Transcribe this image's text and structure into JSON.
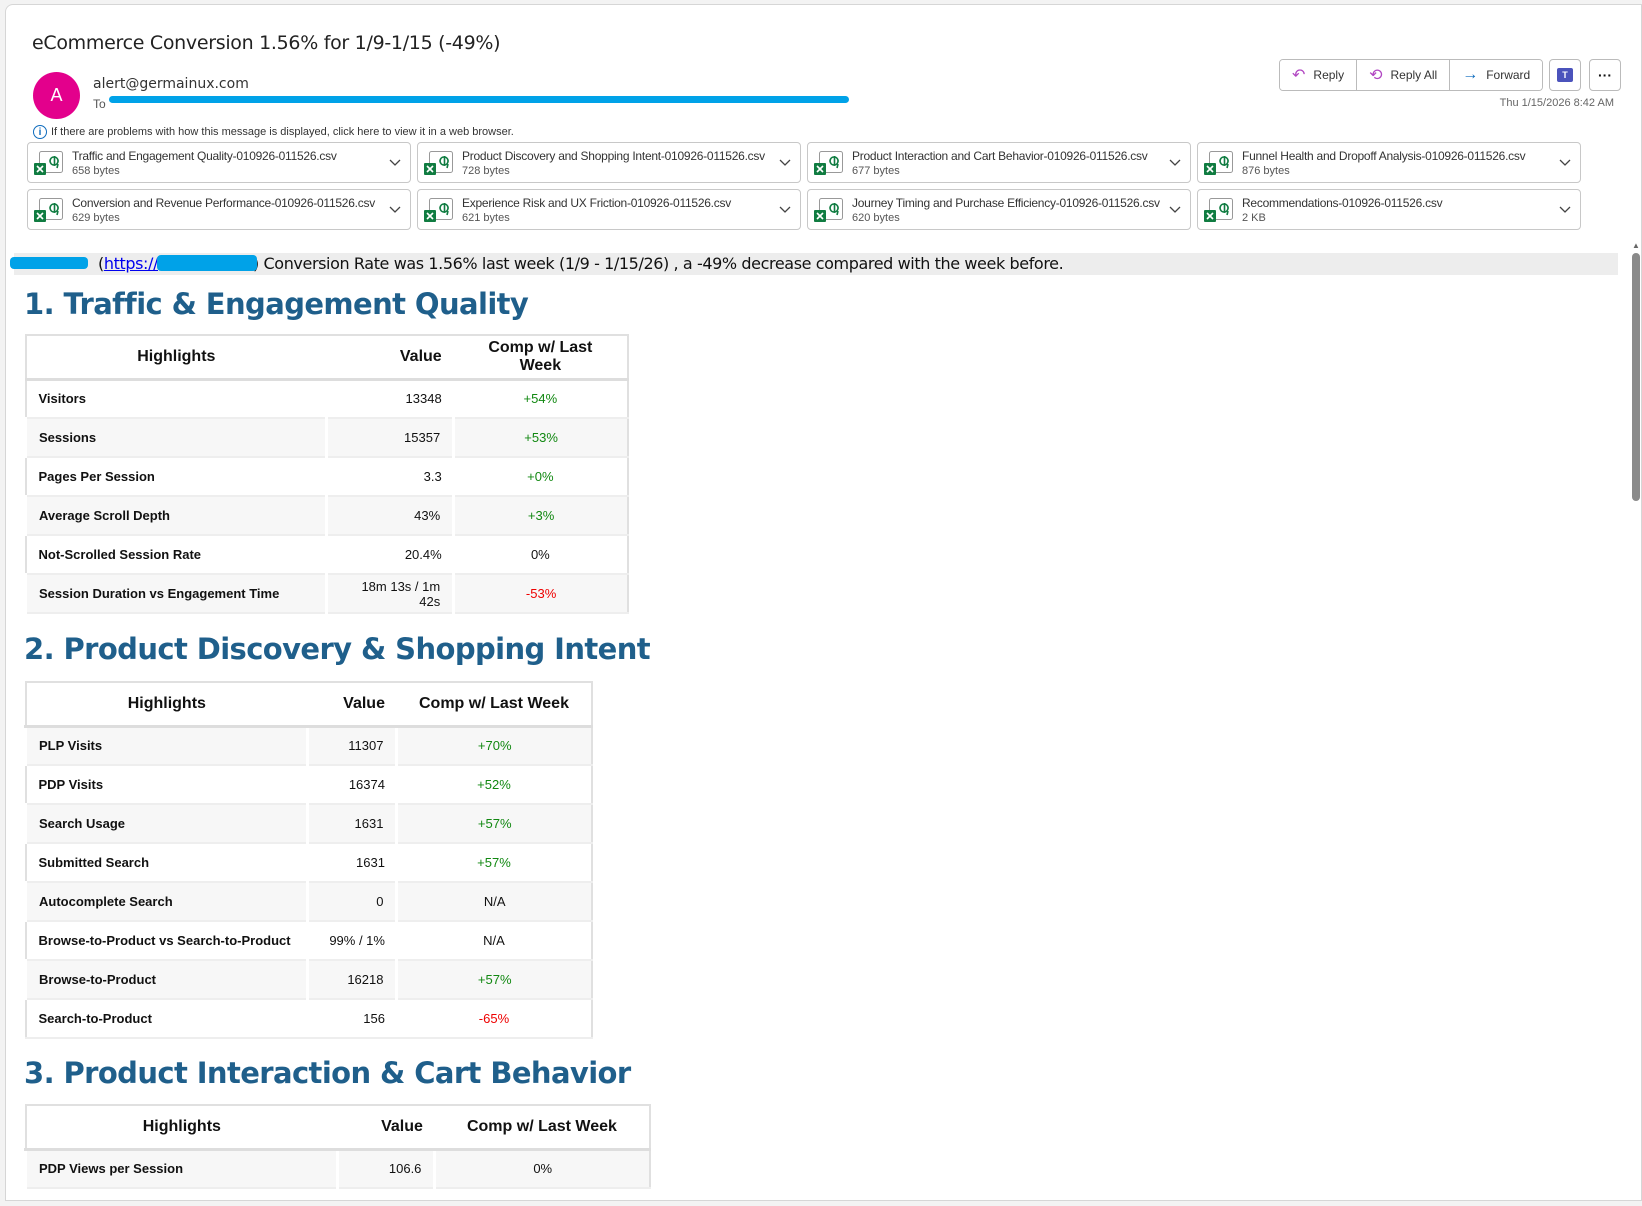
{
  "email": {
    "subject": "eCommerce Conversion 1.56% for 1/9-1/15 (-49%)",
    "avatar_initial": "A",
    "avatar_color": "#e3008c",
    "from": "alert@germainux.com",
    "to_label": "To",
    "date": "Thu 1/15/2026 8:42 AM",
    "info_text": "If there are problems with how this message is displayed, click here to view it in a web browser.",
    "actions": {
      "reply": "Reply",
      "reply_all": "Reply All",
      "forward": "Forward"
    },
    "attachments": [
      {
        "name": "Traffic and Engagement Quality-010926-011526.csv",
        "size": "658 bytes"
      },
      {
        "name": "Product Discovery and Shopping Intent-010926-011526.csv",
        "size": "728 bytes"
      },
      {
        "name": "Product Interaction and Cart Behavior-010926-011526.csv",
        "size": "677 bytes"
      },
      {
        "name": "Funnel Health and Dropoff Analysis-010926-011526.csv",
        "size": "876 bytes"
      },
      {
        "name": "Conversion and Revenue Performance-010926-011526.csv",
        "size": "629 bytes"
      },
      {
        "name": "Experience Risk and UX Friction-010926-011526.csv",
        "size": "621 bytes"
      },
      {
        "name": "Journey Timing and Purchase Efficiency-010926-011526.csv",
        "size": "620 bytes"
      },
      {
        "name": "Recommendations-010926-011526.csv",
        "size": "2 KB"
      }
    ]
  },
  "body": {
    "banner": {
      "open": "(",
      "link": "https://",
      "text": ") Conversion Rate was 1.56% last week (1/9 - 1/15/26) , a -49% decrease compared with the week before."
    },
    "headers": {
      "highlights": "Highlights",
      "value": "Value",
      "comp": "Comp w/ Last Week"
    },
    "sections": [
      {
        "title": "1. Traffic & Engagement Quality",
        "rows": [
          {
            "label": "Visitors",
            "value": "13348",
            "comp": "+54%",
            "trend": "pos"
          },
          {
            "label": "Sessions",
            "value": "15357",
            "comp": "+53%",
            "trend": "pos"
          },
          {
            "label": "Pages Per Session",
            "value": "3.3",
            "comp": "+0%",
            "trend": "pos"
          },
          {
            "label": "Average Scroll Depth",
            "value": "43%",
            "comp": "+3%",
            "trend": "pos"
          },
          {
            "label": "Not-Scrolled Session Rate",
            "value": "20.4%",
            "comp": "0%",
            "trend": "neu"
          },
          {
            "label": "Session Duration vs Engagement Time",
            "value": "18m 13s / 1m 42s",
            "comp": "-53%",
            "trend": "neg"
          }
        ]
      },
      {
        "title": "2. Product Discovery & Shopping Intent",
        "rows": [
          {
            "label": "PLP Visits",
            "value": "11307",
            "comp": "+70%",
            "trend": "pos"
          },
          {
            "label": "PDP Visits",
            "value": "16374",
            "comp": "+52%",
            "trend": "pos"
          },
          {
            "label": "Search Usage",
            "value": "1631",
            "comp": "+57%",
            "trend": "pos"
          },
          {
            "label": "Submitted Search",
            "value": "1631",
            "comp": "+57%",
            "trend": "pos"
          },
          {
            "label": "Autocomplete Search",
            "value": "0",
            "comp": "N/A",
            "trend": "neu"
          },
          {
            "label": "Browse-to-Product vs Search-to-Product",
            "value": "99% / 1%",
            "comp": "N/A",
            "trend": "neu"
          },
          {
            "label": "Browse-to-Product",
            "value": "16218",
            "comp": "+57%",
            "trend": "pos"
          },
          {
            "label": "Search-to-Product",
            "value": "156",
            "comp": "-65%",
            "trend": "neg"
          }
        ]
      },
      {
        "title": "3. Product Interaction & Cart Behavior",
        "rows": [
          {
            "label": "PDP Views per Session",
            "value": "106.6",
            "comp": "0%",
            "trend": "neu"
          }
        ]
      }
    ]
  },
  "colors": {
    "heading": "#1f5f8b",
    "positive": "#118811",
    "negative": "#ee0000",
    "redaction": "#00a2e8"
  }
}
